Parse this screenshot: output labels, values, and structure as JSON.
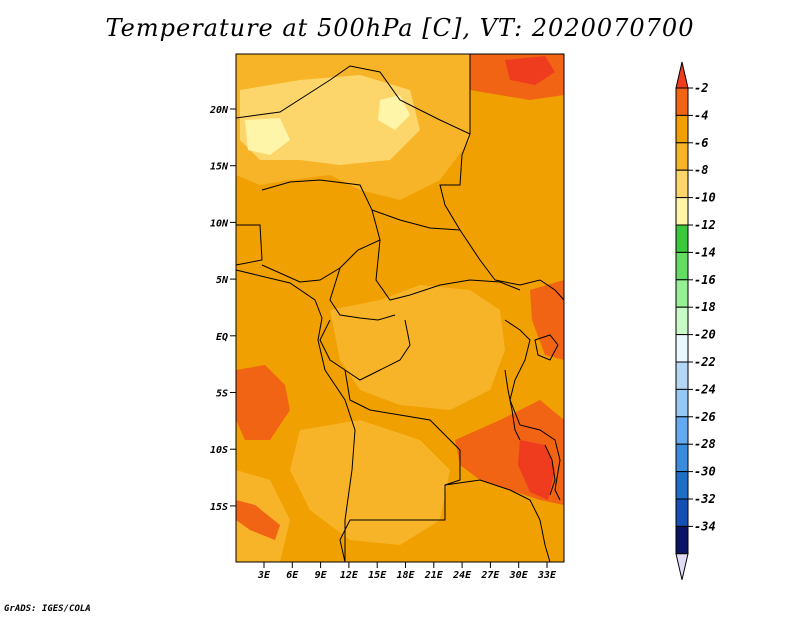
{
  "title": "Temperature at 500hPa [C], VT: 2020070700",
  "footer": "GrADS: IGES/COLA",
  "map": {
    "lat_labels": [
      "20N",
      "15N",
      "10N",
      "5N",
      "EQ",
      "5S",
      "10S",
      "15S"
    ],
    "lon_labels": [
      "3E",
      "6E",
      "9E",
      "12E",
      "15E",
      "18E",
      "21E",
      "24E",
      "27E",
      "30E",
      "33E"
    ]
  },
  "colorbar": {
    "levels": [
      "-2",
      "-4",
      "-6",
      "-8",
      "-10",
      "-12",
      "-14",
      "-16",
      "-18",
      "-20",
      "-22",
      "-24",
      "-26",
      "-28",
      "-30",
      "-32",
      "-34"
    ],
    "colors": [
      "#f03c1e",
      "#f06414",
      "#f0a000",
      "#f8b428",
      "#fcd66a",
      "#fef5a8",
      "#3cc83c",
      "#64dc64",
      "#96f096",
      "#c8fac8",
      "#eaf8ff",
      "#b4d7f5",
      "#96c8f5",
      "#64aaf0",
      "#3c8cdc",
      "#1e6ec8",
      "#1450b4",
      "#0a1464",
      "#e1dcf5"
    ]
  },
  "colors": {
    "background_field": "#f0a000",
    "warm_patch": "#f06414",
    "hot_patch": "#f03c1e",
    "light_patch": "#f8b428",
    "pale_patch": "#fcd66a",
    "palest_patch": "#fef5a8"
  }
}
